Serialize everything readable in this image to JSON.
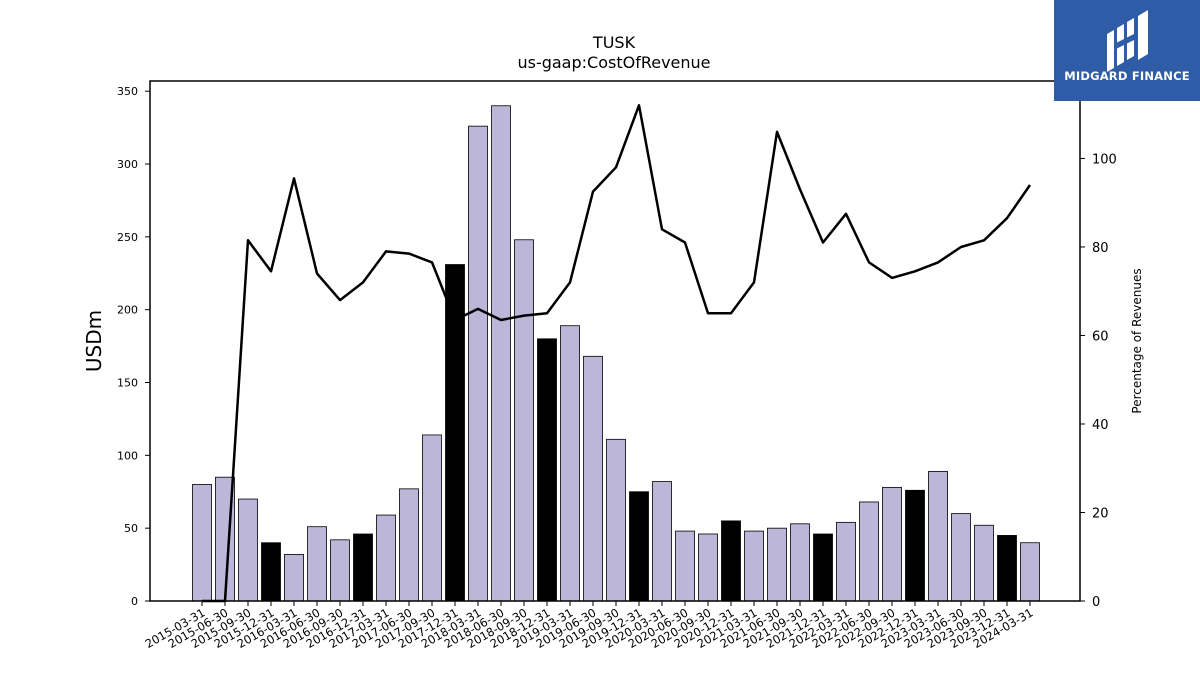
{
  "chart_data": {
    "type": "bar",
    "title": "TUSK",
    "subtitle": "us-gaap:CostOfRevenue",
    "ylabel": "USDm",
    "y2label": "Percentage of Revenues",
    "ylim": [
      0,
      357
    ],
    "y2lim": [
      0,
      117.5
    ],
    "yticks": [
      "0",
      "50",
      "100",
      "150",
      "200",
      "250",
      "300",
      "350"
    ],
    "y2ticks": [
      "0",
      "20",
      "40",
      "60",
      "80",
      "100"
    ],
    "categories": [
      "2015-03-31",
      "2015-06-30",
      "2015-09-30",
      "2015-12-31",
      "2016-03-31",
      "2016-06-30",
      "2016-09-30",
      "2016-12-31",
      "2017-03-31",
      "2017-06-30",
      "2017-09-30",
      "2017-12-31",
      "2018-03-31",
      "2018-06-30",
      "2018-09-30",
      "2018-12-31",
      "2019-03-31",
      "2019-06-30",
      "2019-09-30",
      "2019-12-31",
      "2020-03-31",
      "2020-06-30",
      "2020-09-30",
      "2020-12-31",
      "2021-03-31",
      "2021-06-30",
      "2021-09-30",
      "2021-12-31",
      "2022-03-31",
      "2022-06-30",
      "2022-09-30",
      "2022-12-31",
      "2023-03-31",
      "2023-06-30",
      "2023-09-30",
      "2023-12-31",
      "2024-03-31"
    ],
    "series": [
      {
        "kind": "bar",
        "axis": "left",
        "values": [
          80,
          85,
          70,
          40,
          32,
          51,
          42,
          46,
          59,
          77,
          114,
          231,
          326,
          340,
          248,
          180,
          189,
          168,
          111,
          75,
          82,
          48,
          46,
          55,
          48,
          50,
          53,
          46,
          54,
          68,
          78,
          76,
          89,
          60,
          52,
          45,
          40
        ],
        "highlight": [
          false,
          false,
          false,
          true,
          false,
          false,
          false,
          true,
          false,
          false,
          false,
          true,
          false,
          false,
          false,
          true,
          false,
          false,
          false,
          true,
          false,
          false,
          false,
          true,
          false,
          false,
          false,
          true,
          false,
          false,
          false,
          true,
          false,
          false,
          false,
          true,
          false
        ]
      },
      {
        "kind": "line",
        "axis": "right",
        "values": [
          0,
          0,
          81.5,
          74.5,
          95.5,
          74,
          68,
          72,
          79,
          78.5,
          76.5,
          63.5,
          66,
          63.5,
          64.5,
          65,
          72,
          92.5,
          98,
          112,
          84,
          81,
          65,
          65,
          72,
          106,
          93,
          81,
          87.5,
          76.5,
          73,
          74.5,
          76.5,
          80,
          81.5,
          86.5,
          94
        ]
      }
    ],
    "colors": {
      "bar": "#bcb7d9",
      "bar_highlight": "#000000",
      "line": "#000000",
      "logo_bg": "#2f5ca6"
    },
    "grid": false
  },
  "logo": {
    "text": "MIDGARD FINANCE",
    "icon": "midgard-logo-icon"
  }
}
